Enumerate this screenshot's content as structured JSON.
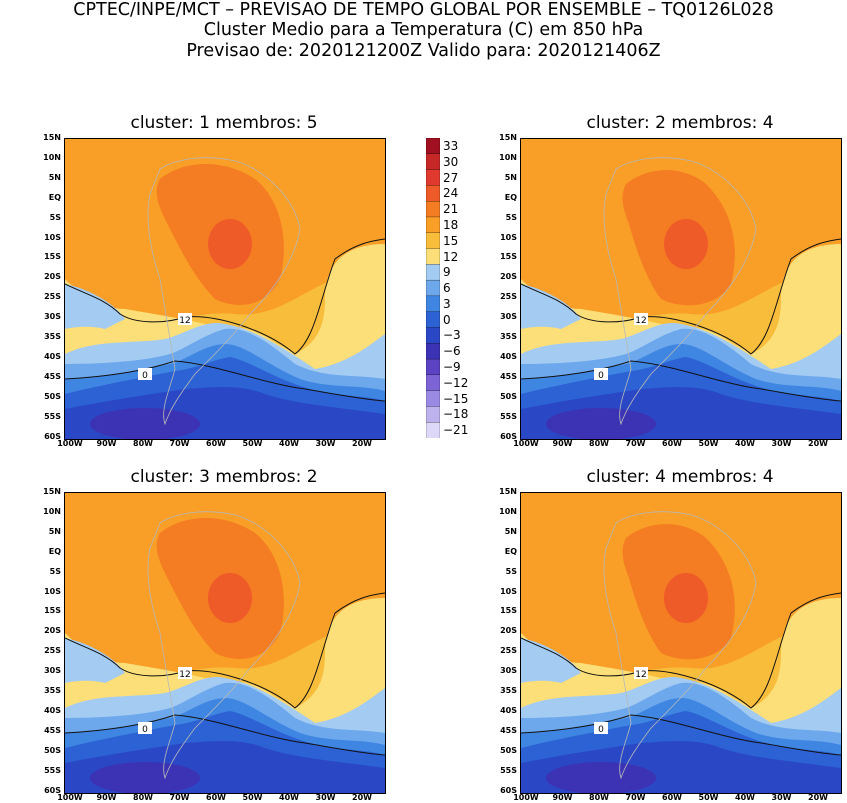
{
  "header": {
    "line1": "CPTEC/INPE/MCT – PREVISAO DE TEMPO GLOBAL POR ENSEMBLE – TQ0126L028",
    "line2": "Cluster Medio para a Temperatura (C) em 850 hPa",
    "line3": "Previsao de: 2020121200Z    Valido para: 2020121406Z"
  },
  "panels": [
    {
      "title": "cluster: 1   membros: 5"
    },
    {
      "title": "cluster: 2   membros: 4"
    },
    {
      "title": "cluster: 3   membros: 2"
    },
    {
      "title": "cluster: 4   membros: 4"
    }
  ],
  "lat_labels": [
    "15N",
    "10N",
    "5N",
    "EQ",
    "5S",
    "10S",
    "15S",
    "20S",
    "25S",
    "30S",
    "35S",
    "40S",
    "45S",
    "50S",
    "55S",
    "60S"
  ],
  "lon_labels": [
    "100W",
    "90W",
    "80W",
    "70W",
    "60W",
    "50W",
    "40W",
    "30W",
    "20W"
  ],
  "colorbar": {
    "labels": [
      "33",
      "30",
      "27",
      "24",
      "21",
      "18",
      "15",
      "12",
      "9",
      "6",
      "3",
      "0",
      "−3",
      "−6",
      "−9",
      "−12",
      "−15",
      "−18",
      "−21"
    ],
    "colors": [
      "#a01020",
      "#c62828",
      "#e03a2e",
      "#ee5a28",
      "#f47c22",
      "#f99e26",
      "#f9bd3c",
      "#fcdf78",
      "#a4cbf2",
      "#6ea8ec",
      "#3f86e2",
      "#2c62d4",
      "#2a48c6",
      "#3c33b4",
      "#5b43c4",
      "#7c64d6",
      "#9a8ae4",
      "#bdb2ee",
      "#ddd8f8"
    ]
  },
  "contour_labels": {
    "twelve": "12",
    "zero": "0"
  }
}
